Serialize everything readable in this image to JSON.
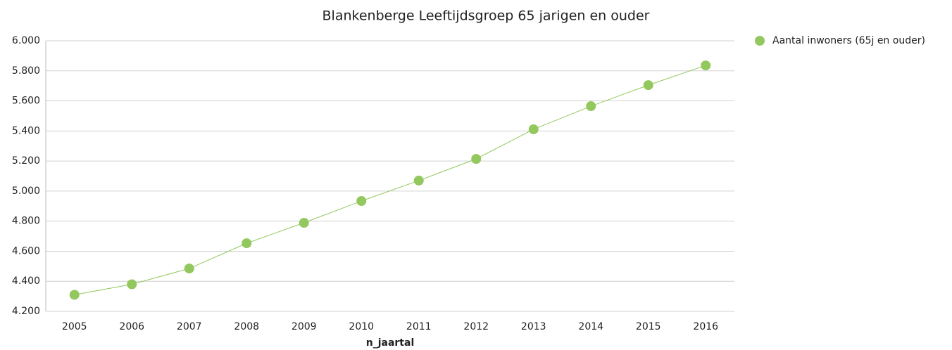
{
  "chart_data": {
    "type": "line",
    "title": "Blankenberge  Leeftijdsgroep 65 jarigen en ouder",
    "x_label": "n_jaartal",
    "categories": [
      "2005",
      "2006",
      "2007",
      "2008",
      "2009",
      "2010",
      "2011",
      "2012",
      "2013",
      "2014",
      "2015",
      "2016"
    ],
    "series": [
      {
        "name": "Aantal inwoners (65j en ouder)",
        "color": "#92c85e",
        "values": [
          4310,
          4380,
          4485,
          4653,
          4789,
          4934,
          5070,
          5214,
          5411,
          5565,
          5705,
          5836
        ]
      }
    ],
    "ylim": [
      4200,
      6000
    ],
    "yticks": [
      {
        "value": 4200,
        "label": "4.200"
      },
      {
        "value": 4400,
        "label": "4.400"
      },
      {
        "value": 4600,
        "label": "4.600"
      },
      {
        "value": 4800,
        "label": "4.800"
      },
      {
        "value": 5000,
        "label": "5.000"
      },
      {
        "value": 5200,
        "label": "5.200"
      },
      {
        "value": 5400,
        "label": "5.400"
      },
      {
        "value": 5600,
        "label": "5.600"
      },
      {
        "value": 5800,
        "label": "5.800"
      },
      {
        "value": 6000,
        "label": "6.000"
      }
    ],
    "grid": true,
    "legend": "right"
  }
}
